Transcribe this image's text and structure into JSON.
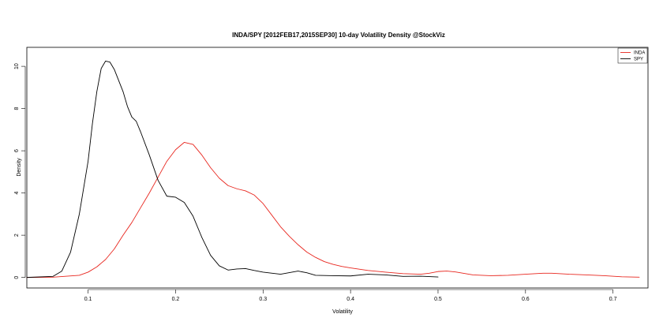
{
  "chart_data": {
    "type": "line",
    "title": "INDA/SPY [2012FEB17,2015SEP30] 10-day Volatility Density @StockViz",
    "xlabel": "Volatility",
    "ylabel": "Density",
    "xlim": [
      0.03,
      0.74
    ],
    "ylim": [
      -0.5,
      10.9
    ],
    "x_ticks": [
      0.1,
      0.2,
      0.3,
      0.4,
      0.5,
      0.6,
      0.7
    ],
    "x_tick_labels": [
      "0.1",
      "0.2",
      "0.3",
      "0.4",
      "0.5",
      "0.6",
      "0.7"
    ],
    "y_ticks": [
      0,
      2,
      4,
      6,
      8,
      10
    ],
    "y_tick_labels": [
      "0",
      "2",
      "4",
      "6",
      "8",
      "10"
    ],
    "legend_position": "top-right",
    "grid": false,
    "series": [
      {
        "name": "INDA",
        "color": "#e8261e",
        "points": [
          [
            0.03,
            0.0
          ],
          [
            0.06,
            0.01
          ],
          [
            0.09,
            0.1
          ],
          [
            0.1,
            0.25
          ],
          [
            0.11,
            0.5
          ],
          [
            0.12,
            0.85
          ],
          [
            0.13,
            1.35
          ],
          [
            0.14,
            2.0
          ],
          [
            0.15,
            2.6
          ],
          [
            0.16,
            3.3
          ],
          [
            0.17,
            4.0
          ],
          [
            0.18,
            4.75
          ],
          [
            0.19,
            5.5
          ],
          [
            0.2,
            6.05
          ],
          [
            0.21,
            6.4
          ],
          [
            0.22,
            6.3
          ],
          [
            0.23,
            5.8
          ],
          [
            0.24,
            5.2
          ],
          [
            0.25,
            4.7
          ],
          [
            0.26,
            4.35
          ],
          [
            0.27,
            4.2
          ],
          [
            0.28,
            4.1
          ],
          [
            0.29,
            3.9
          ],
          [
            0.3,
            3.5
          ],
          [
            0.31,
            2.95
          ],
          [
            0.32,
            2.4
          ],
          [
            0.33,
            1.95
          ],
          [
            0.34,
            1.55
          ],
          [
            0.35,
            1.2
          ],
          [
            0.36,
            0.95
          ],
          [
            0.37,
            0.75
          ],
          [
            0.38,
            0.62
          ],
          [
            0.39,
            0.52
          ],
          [
            0.4,
            0.45
          ],
          [
            0.42,
            0.33
          ],
          [
            0.44,
            0.25
          ],
          [
            0.46,
            0.18
          ],
          [
            0.48,
            0.15
          ],
          [
            0.49,
            0.2
          ],
          [
            0.5,
            0.28
          ],
          [
            0.51,
            0.3
          ],
          [
            0.52,
            0.26
          ],
          [
            0.54,
            0.12
          ],
          [
            0.56,
            0.08
          ],
          [
            0.58,
            0.1
          ],
          [
            0.6,
            0.15
          ],
          [
            0.62,
            0.2
          ],
          [
            0.63,
            0.2
          ],
          [
            0.65,
            0.15
          ],
          [
            0.67,
            0.12
          ],
          [
            0.69,
            0.08
          ],
          [
            0.71,
            0.03
          ],
          [
            0.73,
            0.01
          ]
        ]
      },
      {
        "name": "SPY",
        "color": "#000000",
        "points": [
          [
            0.03,
            0.0
          ],
          [
            0.06,
            0.05
          ],
          [
            0.07,
            0.3
          ],
          [
            0.08,
            1.2
          ],
          [
            0.09,
            3.0
          ],
          [
            0.1,
            5.5
          ],
          [
            0.105,
            7.3
          ],
          [
            0.11,
            8.8
          ],
          [
            0.115,
            9.9
          ],
          [
            0.12,
            10.25
          ],
          [
            0.125,
            10.2
          ],
          [
            0.13,
            9.85
          ],
          [
            0.14,
            8.8
          ],
          [
            0.145,
            8.1
          ],
          [
            0.15,
            7.6
          ],
          [
            0.155,
            7.4
          ],
          [
            0.16,
            6.9
          ],
          [
            0.17,
            5.8
          ],
          [
            0.18,
            4.6
          ],
          [
            0.19,
            3.85
          ],
          [
            0.2,
            3.8
          ],
          [
            0.21,
            3.55
          ],
          [
            0.22,
            2.9
          ],
          [
            0.23,
            1.9
          ],
          [
            0.24,
            1.05
          ],
          [
            0.25,
            0.55
          ],
          [
            0.26,
            0.35
          ],
          [
            0.27,
            0.4
          ],
          [
            0.28,
            0.42
          ],
          [
            0.29,
            0.33
          ],
          [
            0.3,
            0.25
          ],
          [
            0.32,
            0.15
          ],
          [
            0.34,
            0.3
          ],
          [
            0.35,
            0.22
          ],
          [
            0.36,
            0.1
          ],
          [
            0.38,
            0.08
          ],
          [
            0.4,
            0.07
          ],
          [
            0.42,
            0.15
          ],
          [
            0.44,
            0.12
          ],
          [
            0.46,
            0.05
          ],
          [
            0.48,
            0.06
          ],
          [
            0.5,
            0.02
          ]
        ]
      }
    ]
  }
}
